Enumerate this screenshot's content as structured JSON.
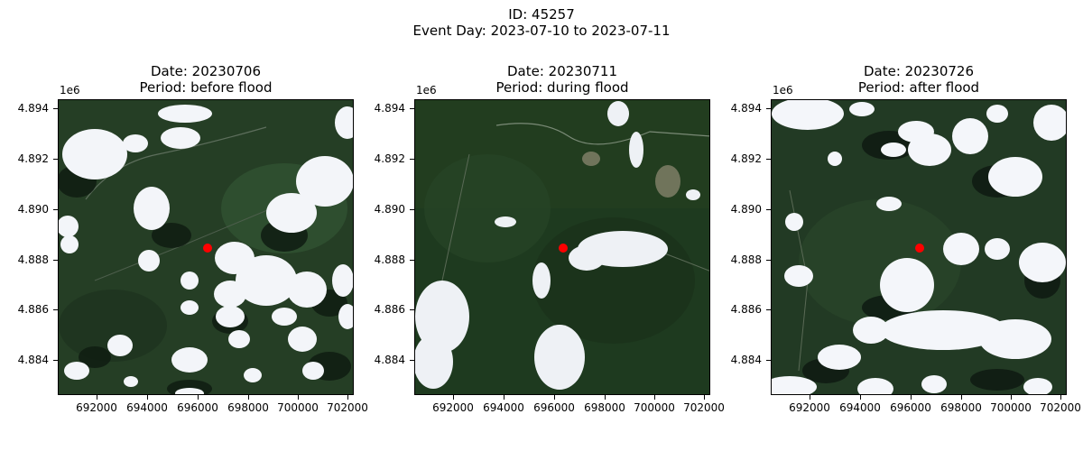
{
  "figure": {
    "title_line1": "ID: 45257",
    "title_line2": "Event Day: 2023-07-10 to 2023-07-11"
  },
  "axes": {
    "offset_label": "1e6",
    "yticks": [
      "4.894",
      "4.892",
      "4.890",
      "4.888",
      "4.886",
      "4.884"
    ],
    "xticks": [
      "692000",
      "694000",
      "696000",
      "698000",
      "700000",
      "702000"
    ]
  },
  "panels": [
    {
      "date": "Date: 20230706",
      "period": "Period: before flood"
    },
    {
      "date": "Date: 20230711",
      "period": "Period: during flood"
    },
    {
      "date": "Date: 20230726",
      "period": "Period: after flood"
    }
  ],
  "marker": {
    "color": "#ff0000",
    "x": 697100,
    "y": 4888400
  },
  "colors": {
    "vegetation": "#233a22",
    "cloud": "#f4f6fa",
    "shadow": "#0e1a12"
  }
}
